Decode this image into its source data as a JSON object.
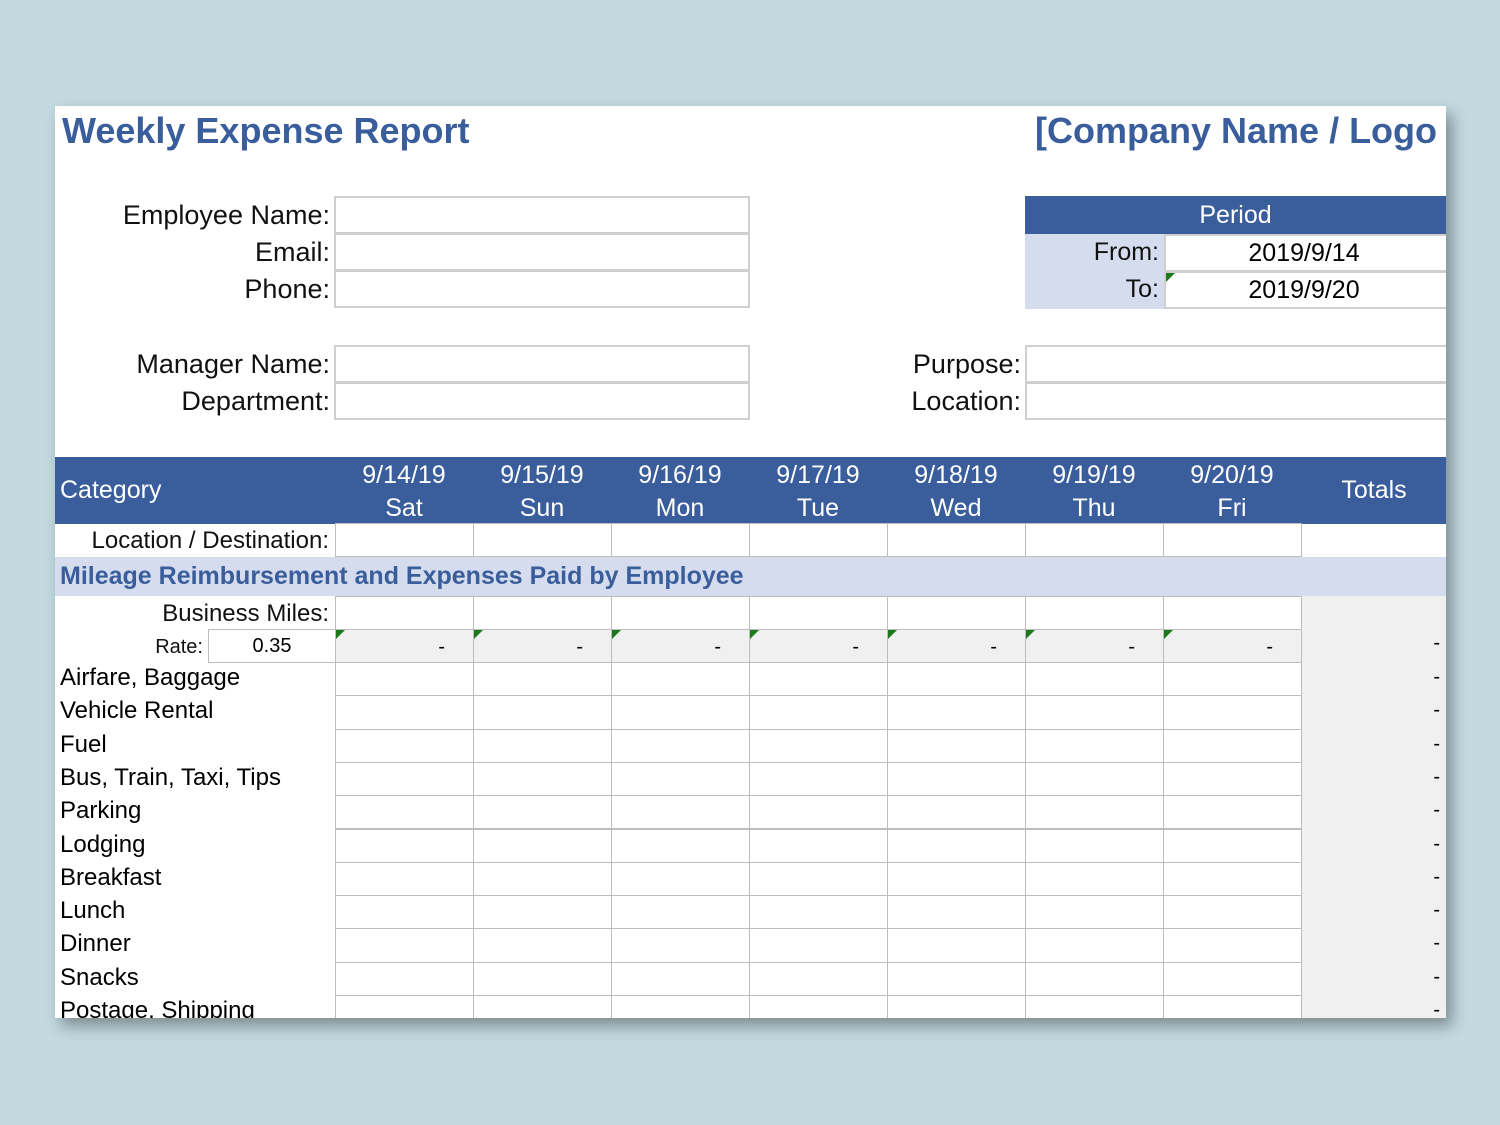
{
  "header": {
    "title": "Weekly Expense Report",
    "company": "[Company Name / Logo"
  },
  "employee": {
    "name_label": "Employee Name:",
    "email_label": "Email:",
    "phone_label": "Phone:",
    "manager_label": "Manager Name:",
    "department_label": "Department:",
    "name": "",
    "email": "",
    "phone": "",
    "manager": "",
    "department": ""
  },
  "period": {
    "title": "Period",
    "from_label": "From:",
    "to_label": "To:",
    "from": "2019/9/14",
    "to": "2019/9/20"
  },
  "trip": {
    "purpose_label": "Purpose:",
    "location_label": "Location:",
    "purpose": "",
    "location": ""
  },
  "table": {
    "category_label": "Category",
    "totals_label": "Totals",
    "days": [
      {
        "date": "9/14/19",
        "day": "Sat"
      },
      {
        "date": "9/15/19",
        "day": "Sun"
      },
      {
        "date": "9/16/19",
        "day": "Mon"
      },
      {
        "date": "9/17/19",
        "day": "Tue"
      },
      {
        "date": "9/18/19",
        "day": "Wed"
      },
      {
        "date": "9/19/19",
        "day": "Thu"
      },
      {
        "date": "9/20/19",
        "day": "Fri"
      }
    ],
    "location_label": "Location / Destination:",
    "section_label": "Mileage Reimbursement and Expenses Paid by Employee",
    "miles_label": "Business Miles:",
    "rate_label": "Rate:",
    "rate": "0.35",
    "mileage_values": [
      "-",
      "-",
      "-",
      "-",
      "-",
      "-",
      "-"
    ],
    "mileage_total": "-",
    "categories": [
      "Airfare, Baggage",
      "Vehicle Rental",
      "Fuel",
      "Bus, Train, Taxi, Tips",
      "Parking",
      "Lodging",
      "Breakfast",
      "Lunch",
      "Dinner",
      "Snacks",
      "Postage, Shipping"
    ],
    "row_total": "-"
  }
}
